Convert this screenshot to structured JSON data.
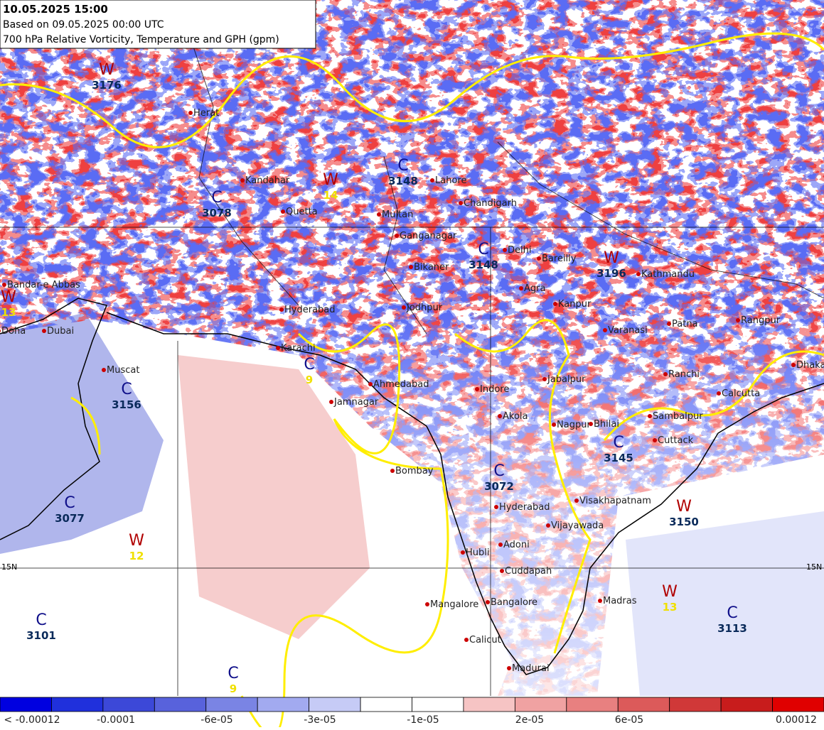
{
  "header": {
    "valid": "10.05.2025 15:00",
    "based": "Based on 09.05.2025 00:00 UTC",
    "title": "700 hPa Relative Vorticity, Temperature and GPH (gpm)"
  },
  "cities": [
    "Herat",
    "Kandahar",
    "Quetta",
    "Bandar-e Abbas",
    "Doha",
    "Dubai",
    "Muscat",
    "Karachi",
    "Hyderabad",
    "Multan",
    "Lahore",
    "Chandigarh",
    "Ganganagar",
    "Bikaner",
    "Delhi",
    "Bareilly",
    "Agra",
    "Kanpur",
    "Jodhpur",
    "Varanasi",
    "Patna",
    "Kathmandu",
    "Rangpur",
    "Dhaka",
    "Ranchi",
    "Calcutta",
    "Ahmedabad",
    "Jamnagar",
    "Indore",
    "Jabalpur",
    "Akola",
    "Nagpur",
    "Bhilai",
    "Sambalpur",
    "Cuttack",
    "Bombay",
    "Hyderabad",
    "Visakhapatnam",
    "Vijayawada",
    "Hubli",
    "Adoni",
    "Cuddapah",
    "Mangalore",
    "Bangalore",
    "Madras",
    "Calicut",
    "Madurai"
  ],
  "systems": [
    {
      "letter": "W",
      "value": 3176
    },
    {
      "letter": "C",
      "value": 3078
    },
    {
      "letter": "W",
      "value": 14
    },
    {
      "letter": "W",
      "value": 13
    },
    {
      "letter": "C",
      "value": 3148
    },
    {
      "letter": "C",
      "value": 3148
    },
    {
      "letter": "W",
      "value": 3196
    },
    {
      "letter": "C",
      "value": 3156
    },
    {
      "letter": "C",
      "value": 9
    },
    {
      "letter": "C",
      "value": 3077
    },
    {
      "letter": "W",
      "value": 12
    },
    {
      "letter": "C",
      "value": 3072
    },
    {
      "letter": "C",
      "value": 3145
    },
    {
      "letter": "W",
      "value": 3150
    },
    {
      "letter": "W",
      "value": 13
    },
    {
      "letter": "C",
      "value": 3113
    },
    {
      "letter": "C",
      "value": 3101
    },
    {
      "letter": "C",
      "value": 9
    }
  ],
  "latitude_labels": [
    "15N",
    "15N"
  ],
  "colorbar": {
    "colors": [
      "#0000e0",
      "#2030dc",
      "#3c48d8",
      "#5862dc",
      "#7a84e4",
      "#a2aaf0",
      "#c6cbf6",
      "#ffffff",
      "#ffffff",
      "#f6c4c4",
      "#f0a2a2",
      "#e88080",
      "#dc5a5a",
      "#d03838",
      "#c81c1c",
      "#e00000"
    ],
    "labels": [
      "< -0.00012",
      "-0.0001",
      "-6e-05",
      "-3e-05",
      "-1e-05",
      "2e-05",
      "6e-05",
      "0.00012"
    ]
  }
}
